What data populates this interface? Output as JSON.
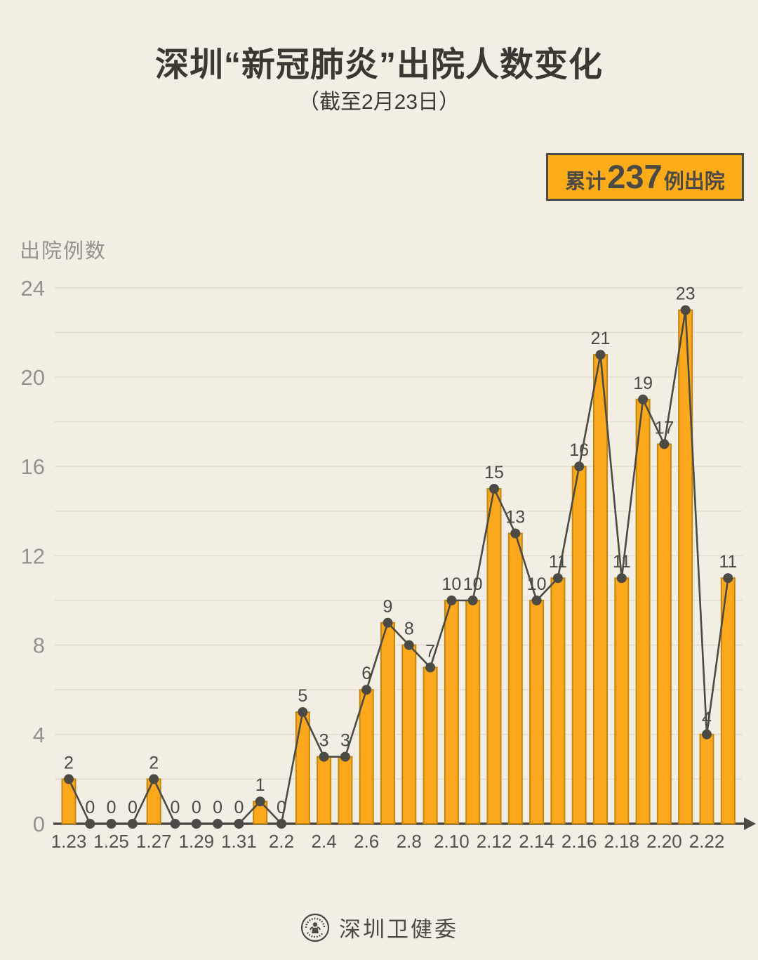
{
  "header": {
    "title": "深圳“新冠肺炎”出院人数变化",
    "subtitle": "（截至2月23日）"
  },
  "badge": {
    "prefix": "累计",
    "value": "237",
    "suffix": "例出院"
  },
  "chart_data": {
    "type": "bar",
    "subtype": "bar-with-line-overlay",
    "title": "深圳“新冠肺炎”出院人数变化（截至2月23日）",
    "annotation": "累计237例出院",
    "total": 237,
    "xlabel": "",
    "ylabel": "出院例数",
    "ylim": [
      0,
      24
    ],
    "yticks": [
      0,
      4,
      8,
      12,
      16,
      20,
      24
    ],
    "gridline_step": 2,
    "grid": "on",
    "categories": [
      "1.23",
      "1.24",
      "1.25",
      "1.26",
      "1.27",
      "1.28",
      "1.29",
      "1.30",
      "1.31",
      "2.1",
      "2.2",
      "2.3",
      "2.4",
      "2.5",
      "2.6",
      "2.7",
      "2.8",
      "2.9",
      "2.10",
      "2.11",
      "2.12",
      "2.13",
      "2.14",
      "2.15",
      "2.16",
      "2.17",
      "2.18",
      "2.19",
      "2.20",
      "2.21",
      "2.22",
      "2.23"
    ],
    "values": [
      2,
      0,
      0,
      0,
      2,
      0,
      0,
      0,
      0,
      1,
      0,
      5,
      3,
      3,
      6,
      9,
      8,
      7,
      10,
      10,
      15,
      13,
      10,
      11,
      16,
      21,
      11,
      19,
      17,
      23,
      4,
      11
    ],
    "x_tick_labels": [
      "1.23",
      "1.25",
      "1.27",
      "1.29",
      "1.31",
      "2.2",
      "2.4",
      "2.6",
      "2.8",
      "2.10",
      "2.12",
      "2.14",
      "2.16",
      "2.18",
      "2.20",
      "2.22"
    ],
    "colors": {
      "background": "#F3EEE3",
      "bar_fill": "#FBA81C",
      "bar_stroke": "#C4860F",
      "line": "#4C4A45",
      "grid": "#E4DDCF",
      "tick_text": "#97918A",
      "x_tick_text": "#57534B",
      "label_text": "#4B4945"
    }
  },
  "footer": {
    "org": "深圳卫健委",
    "logo": "health-commission-seal-icon"
  }
}
